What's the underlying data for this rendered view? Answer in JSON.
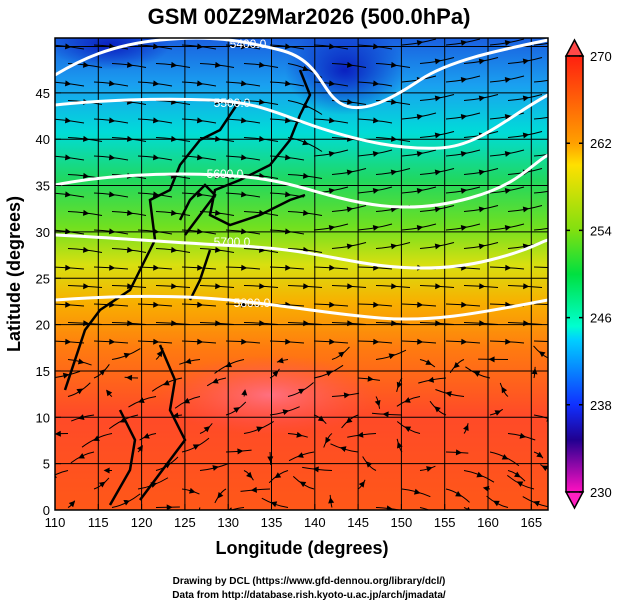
{
  "title": "GSM 00Z29Mar2026 (500.0hPa)",
  "xlabel": "Longitude (degrees)",
  "ylabel": "Latitude  (degrees)",
  "x_ticks": [
    "110",
    "115",
    "120",
    "125",
    "130",
    "135",
    "140",
    "145",
    "150",
    "155",
    "160",
    "165"
  ],
  "y_ticks": [
    "0",
    "5",
    "10",
    "15",
    "20",
    "25",
    "30",
    "35",
    "40",
    "45"
  ],
  "colorbar": {
    "labels": [
      "270",
      "262",
      "254",
      "246",
      "238",
      "230"
    ],
    "min": 230,
    "max": 270
  },
  "contours": [
    {
      "label": "5400.0"
    },
    {
      "label": "5500.0"
    },
    {
      "label": "5600.0"
    },
    {
      "label": "5700.0"
    },
    {
      "label": "5800.0"
    }
  ],
  "credits": {
    "line1": "Drawing by DCL (https://www.gfd-dennou.org/library/dcl/)",
    "line2": "Data from http://database.rish.kyoto-u.ac.jp/arch/jmadata/"
  }
}
